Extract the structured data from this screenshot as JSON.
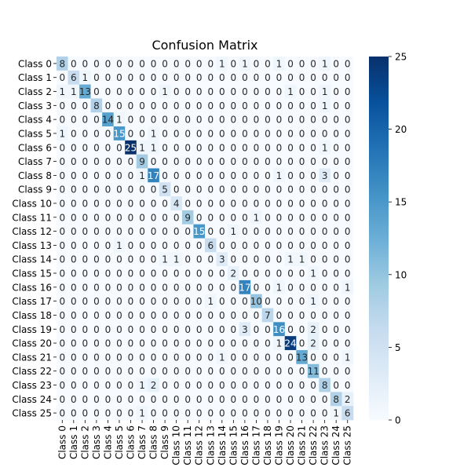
{
  "chart_data": {
    "type": "heatmap",
    "title": "Confusion Matrix",
    "xlabel": "",
    "ylabel": "",
    "row_labels": [
      "Class 0",
      "Class 1",
      "Class 2",
      "Class 3",
      "Class 4",
      "Class 5",
      "Class 6",
      "Class 7",
      "Class 8",
      "Class 9",
      "Class 10",
      "Class 11",
      "Class 12",
      "Class 13",
      "Class 14",
      "Class 15",
      "Class 16",
      "Class 17",
      "Class 18",
      "Class 19",
      "Class 20",
      "Class 21",
      "Class 22",
      "Class 23",
      "Class 24",
      "Class 25"
    ],
    "col_labels": [
      "Class 0",
      "Class 1",
      "Class 2",
      "Class 3",
      "Class 4",
      "Class 5",
      "Class 6",
      "Class 7",
      "Class 8",
      "Class 9",
      "Class 10",
      "Class 11",
      "Class 12",
      "Class 13",
      "Class 14",
      "Class 15",
      "Class 16",
      "Class 17",
      "Class 18",
      "Class 19",
      "Class 20",
      "Class 21",
      "Class 22",
      "Class 23",
      "Class 24",
      "Class 25"
    ],
    "matrix": [
      [
        8,
        0,
        0,
        0,
        0,
        0,
        0,
        0,
        0,
        0,
        0,
        0,
        0,
        0,
        1,
        0,
        1,
        0,
        0,
        1,
        0,
        0,
        0,
        1,
        0,
        0
      ],
      [
        0,
        6,
        1,
        0,
        0,
        0,
        0,
        0,
        0,
        0,
        0,
        0,
        0,
        0,
        0,
        0,
        0,
        0,
        0,
        0,
        0,
        0,
        0,
        0,
        0,
        0
      ],
      [
        1,
        1,
        13,
        0,
        0,
        0,
        0,
        0,
        0,
        1,
        0,
        0,
        0,
        0,
        0,
        0,
        0,
        0,
        0,
        0,
        1,
        0,
        0,
        1,
        0,
        0
      ],
      [
        0,
        0,
        0,
        8,
        0,
        0,
        0,
        0,
        0,
        0,
        0,
        0,
        0,
        0,
        0,
        0,
        0,
        0,
        0,
        0,
        0,
        0,
        0,
        1,
        0,
        0
      ],
      [
        0,
        0,
        0,
        0,
        14,
        1,
        0,
        0,
        0,
        0,
        0,
        0,
        0,
        0,
        0,
        0,
        0,
        0,
        0,
        0,
        0,
        0,
        0,
        0,
        0,
        0
      ],
      [
        1,
        0,
        0,
        0,
        0,
        15,
        0,
        0,
        1,
        0,
        0,
        0,
        0,
        0,
        0,
        0,
        0,
        0,
        0,
        0,
        0,
        0,
        0,
        0,
        0,
        0
      ],
      [
        0,
        0,
        0,
        0,
        0,
        0,
        25,
        1,
        1,
        0,
        0,
        0,
        0,
        0,
        0,
        0,
        0,
        0,
        0,
        0,
        0,
        0,
        0,
        1,
        0,
        0
      ],
      [
        0,
        0,
        0,
        0,
        0,
        0,
        0,
        9,
        0,
        0,
        0,
        0,
        0,
        0,
        0,
        0,
        0,
        0,
        0,
        0,
        0,
        0,
        0,
        0,
        0,
        0
      ],
      [
        0,
        0,
        0,
        0,
        0,
        0,
        0,
        1,
        17,
        0,
        0,
        0,
        0,
        0,
        0,
        0,
        0,
        0,
        0,
        1,
        0,
        0,
        0,
        3,
        0,
        0
      ],
      [
        0,
        0,
        0,
        0,
        0,
        0,
        0,
        0,
        0,
        5,
        0,
        0,
        0,
        0,
        0,
        0,
        0,
        0,
        0,
        0,
        0,
        0,
        0,
        0,
        0,
        0
      ],
      [
        0,
        0,
        0,
        0,
        0,
        0,
        0,
        0,
        0,
        0,
        4,
        0,
        0,
        0,
        0,
        0,
        0,
        0,
        0,
        0,
        0,
        0,
        0,
        0,
        0,
        0
      ],
      [
        0,
        0,
        0,
        0,
        0,
        0,
        0,
        0,
        0,
        0,
        0,
        9,
        0,
        0,
        0,
        0,
        0,
        1,
        0,
        0,
        0,
        0,
        0,
        0,
        0,
        0
      ],
      [
        0,
        0,
        0,
        0,
        0,
        0,
        0,
        0,
        0,
        0,
        0,
        0,
        15,
        0,
        0,
        1,
        0,
        0,
        0,
        0,
        0,
        0,
        0,
        0,
        0,
        0
      ],
      [
        0,
        0,
        0,
        0,
        0,
        1,
        0,
        0,
        0,
        0,
        0,
        0,
        0,
        6,
        0,
        0,
        0,
        0,
        0,
        0,
        0,
        0,
        0,
        0,
        0,
        0
      ],
      [
        0,
        0,
        0,
        0,
        0,
        0,
        0,
        0,
        0,
        1,
        1,
        0,
        0,
        0,
        3,
        0,
        0,
        0,
        0,
        0,
        1,
        1,
        0,
        0,
        0,
        0
      ],
      [
        0,
        0,
        0,
        0,
        0,
        0,
        0,
        0,
        0,
        0,
        0,
        0,
        0,
        0,
        0,
        2,
        0,
        0,
        0,
        0,
        0,
        0,
        1,
        0,
        0,
        0
      ],
      [
        0,
        0,
        0,
        0,
        0,
        0,
        0,
        0,
        0,
        0,
        0,
        0,
        0,
        0,
        0,
        0,
        17,
        0,
        0,
        1,
        0,
        0,
        0,
        0,
        0,
        1
      ],
      [
        0,
        0,
        0,
        0,
        0,
        0,
        0,
        0,
        0,
        0,
        0,
        0,
        0,
        1,
        0,
        0,
        0,
        10,
        0,
        0,
        0,
        0,
        1,
        0,
        0,
        0
      ],
      [
        0,
        0,
        0,
        0,
        0,
        0,
        0,
        0,
        0,
        0,
        0,
        0,
        0,
        0,
        0,
        0,
        0,
        0,
        7,
        0,
        0,
        0,
        0,
        0,
        0,
        0
      ],
      [
        0,
        0,
        0,
        0,
        0,
        0,
        0,
        0,
        0,
        0,
        0,
        0,
        0,
        0,
        0,
        0,
        3,
        0,
        0,
        16,
        0,
        0,
        2,
        0,
        0,
        0
      ],
      [
        0,
        0,
        0,
        0,
        0,
        0,
        0,
        0,
        0,
        0,
        0,
        0,
        0,
        0,
        0,
        0,
        0,
        0,
        0,
        1,
        24,
        0,
        2,
        0,
        0,
        0
      ],
      [
        0,
        0,
        0,
        0,
        0,
        0,
        0,
        0,
        0,
        0,
        0,
        0,
        0,
        0,
        1,
        0,
        0,
        0,
        0,
        0,
        0,
        13,
        0,
        0,
        0,
        1
      ],
      [
        0,
        0,
        0,
        0,
        0,
        0,
        0,
        0,
        0,
        0,
        0,
        0,
        0,
        0,
        0,
        0,
        0,
        0,
        0,
        0,
        0,
        0,
        11,
        0,
        0,
        0
      ],
      [
        0,
        0,
        0,
        0,
        0,
        0,
        0,
        1,
        2,
        0,
        0,
        0,
        0,
        0,
        0,
        0,
        0,
        0,
        0,
        0,
        0,
        0,
        0,
        8,
        0,
        0
      ],
      [
        0,
        0,
        0,
        0,
        0,
        0,
        0,
        0,
        0,
        0,
        0,
        0,
        0,
        0,
        0,
        0,
        0,
        0,
        0,
        0,
        0,
        0,
        0,
        0,
        8,
        2
      ],
      [
        0,
        0,
        0,
        0,
        0,
        0,
        0,
        1,
        0,
        0,
        0,
        0,
        0,
        0,
        0,
        0,
        0,
        0,
        0,
        0,
        0,
        0,
        0,
        0,
        1,
        6
      ]
    ],
    "vmin": 0,
    "vmax": 25,
    "colormap": "Blues",
    "colorbar_ticks": [
      0,
      5,
      10,
      15,
      20,
      25
    ],
    "annotations": true,
    "grid": false,
    "colorbar_position": "right"
  }
}
